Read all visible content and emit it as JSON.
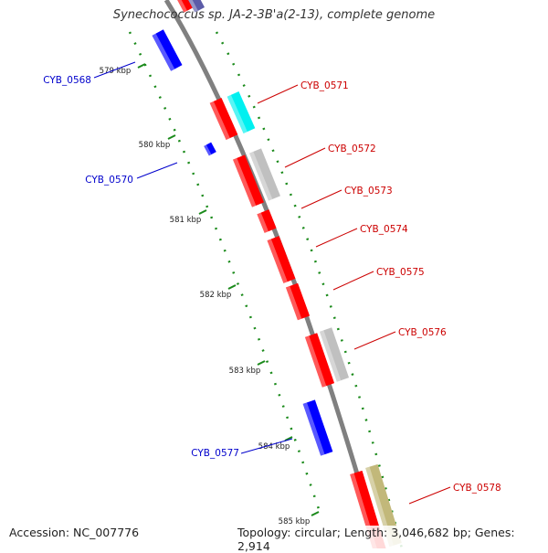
{
  "title": "Synechococcus sp. JA-2-3B'a(2-13), complete genome",
  "footer": {
    "accession": "Accession: NC_007776",
    "summary": "Topology: circular; Length: 3,046,682 bp; Genes: 2,914"
  },
  "colors": {
    "backbone": "#808080",
    "tick": "#1a8a1a",
    "forward_cds": "#ff0000",
    "reverse_cds": "#0000ff",
    "forward_label": "#cc0000",
    "reverse_label": "#0000cc",
    "cog_cyan": "#00f0f0",
    "cog_grey": "#c0c0c0",
    "cog_khaki": "#c2b87a",
    "cog_navy": "#5c5ca8"
  },
  "ruler": [
    {
      "label": "579 kbp"
    },
    {
      "label": "580 kbp"
    },
    {
      "label": "581 kbp"
    },
    {
      "label": "582 kbp"
    },
    {
      "label": "583 kbp"
    },
    {
      "label": "584 kbp"
    },
    {
      "label": "585 kbp"
    }
  ],
  "genes": [
    {
      "label": "CYB_0568",
      "strand": "reverse",
      "cog": "none"
    },
    {
      "label": "CYB_0570",
      "strand": "reverse",
      "cog": "none"
    },
    {
      "label": "CYB_0571",
      "strand": "forward",
      "cog": "cyan"
    },
    {
      "label": "CYB_0572",
      "strand": "forward",
      "cog": "grey"
    },
    {
      "label": "CYB_0573",
      "strand": "forward",
      "cog": "none"
    },
    {
      "label": "CYB_0574",
      "strand": "forward",
      "cog": "none"
    },
    {
      "label": "CYB_0575",
      "strand": "forward",
      "cog": "none"
    },
    {
      "label": "CYB_0576",
      "strand": "forward",
      "cog": "grey"
    },
    {
      "label": "CYB_0577",
      "strand": "reverse",
      "cog": "none"
    },
    {
      "label": "CYB_0578",
      "strand": "forward",
      "cog": "khaki"
    }
  ]
}
